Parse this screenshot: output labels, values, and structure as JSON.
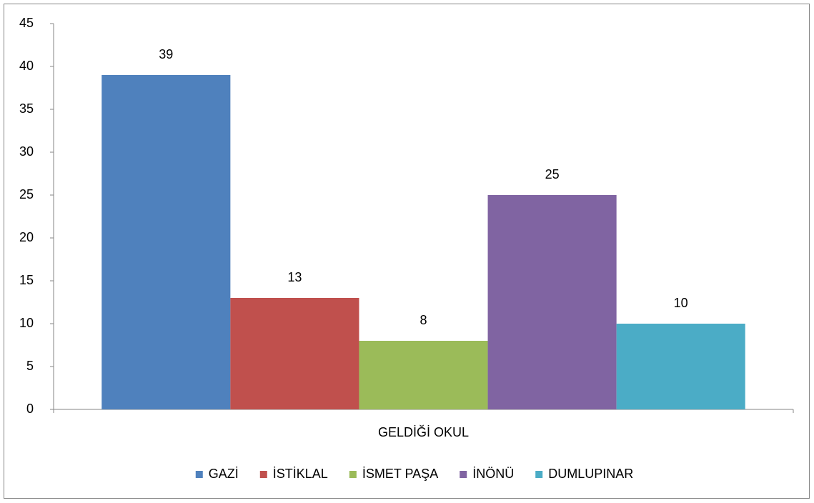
{
  "chart_data": {
    "type": "bar",
    "categories": [
      "GELDİĞİ OKUL"
    ],
    "series": [
      {
        "name": "GAZİ",
        "color": "#4f81bd",
        "values": [
          39
        ]
      },
      {
        "name": "İSTİKLAL",
        "color": "#c0504d",
        "values": [
          13
        ]
      },
      {
        "name": "İSMET PAŞA",
        "color": "#9bbb59",
        "values": [
          8
        ]
      },
      {
        "name": "İNÖNÜ",
        "color": "#8064a2",
        "values": [
          25
        ]
      },
      {
        "name": "DUMLUPINAR",
        "color": "#4bacc6",
        "values": [
          10
        ]
      }
    ],
    "ylim": [
      0,
      45
    ],
    "yticks": [
      0,
      5,
      10,
      15,
      20,
      25,
      30,
      35,
      40,
      45
    ],
    "grid": false,
    "data_labels": true,
    "legend": "bottom"
  }
}
